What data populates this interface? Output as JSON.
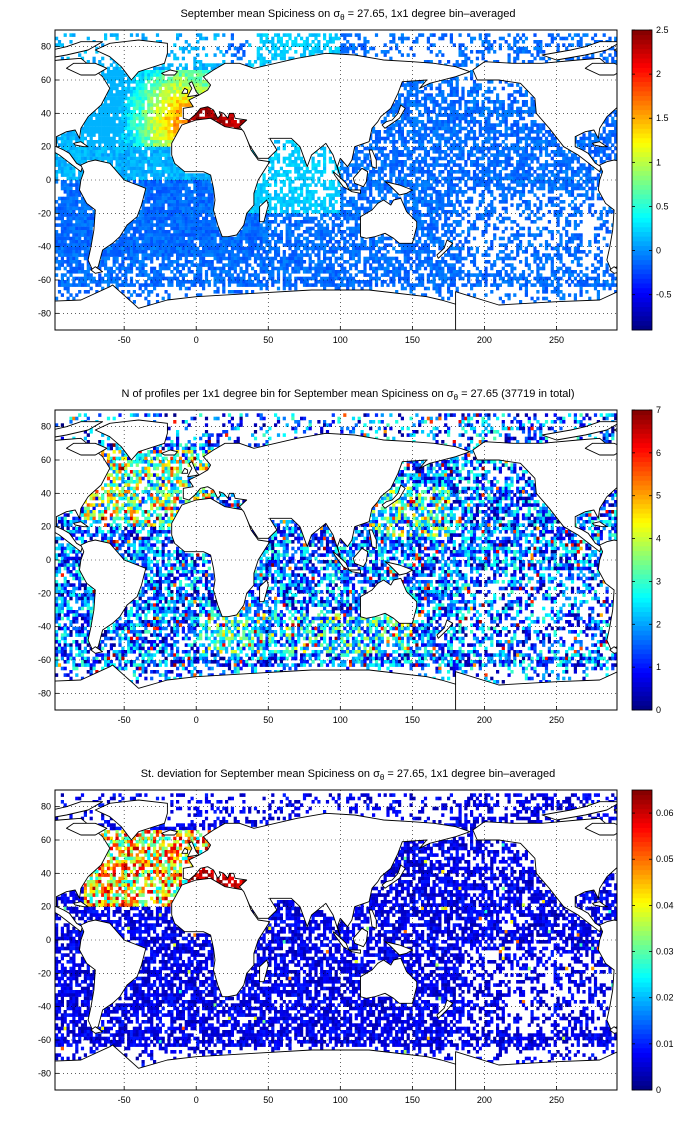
{
  "panels": [
    {
      "title_pre": "September mean Spiciness on σ",
      "title_sub": "θ",
      "title_post": " = 27.65, 1x1 degree bin–averaged",
      "colorbar": {
        "min": -0.9,
        "max": 2.5,
        "ticks": [
          "-0.5",
          "0",
          "0.5",
          "1",
          "1.5",
          "2",
          "2.5"
        ],
        "values": [
          -0.5,
          0,
          0.5,
          1,
          1.5,
          2,
          2.5
        ]
      }
    },
    {
      "title_pre": "N of profiles per 1x1 degree bin for September mean Spiciness on σ",
      "title_sub": "θ",
      "title_post": " = 27.65 (37719 in total)",
      "colorbar": {
        "min": 0,
        "max": 7,
        "ticks": [
          "0",
          "1",
          "2",
          "3",
          "4",
          "5",
          "6",
          "7"
        ],
        "values": [
          0,
          1,
          2,
          3,
          4,
          5,
          6,
          7
        ]
      }
    },
    {
      "title_pre": "St. deviation for September mean Spiciness on σ",
      "title_sub": "θ",
      "title_post": " = 27.65, 1x1 degree bin–averaged",
      "colorbar": {
        "min": 0,
        "max": 0.065,
        "ticks": [
          "0",
          "0.01",
          "0.02",
          "0.03",
          "0.04",
          "0.05",
          "0.06"
        ],
        "values": [
          0,
          0.01,
          0.02,
          0.03,
          0.04,
          0.05,
          0.06
        ]
      }
    }
  ],
  "map_axes": {
    "xlim": [
      -98,
      292
    ],
    "ylim": [
      -90,
      90
    ],
    "xticks": [
      "-50",
      "0",
      "50",
      "100",
      "150",
      "200",
      "250"
    ],
    "xtick_values": [
      -50,
      0,
      50,
      100,
      150,
      200,
      250
    ],
    "yticks": [
      "80",
      "60",
      "40",
      "20",
      "0",
      "-20",
      "-40",
      "-60",
      "-80"
    ],
    "ytick_values": [
      80,
      60,
      40,
      20,
      0,
      -20,
      -40,
      -60,
      -80
    ],
    "grid": "dotted"
  },
  "colormap": "jet"
}
